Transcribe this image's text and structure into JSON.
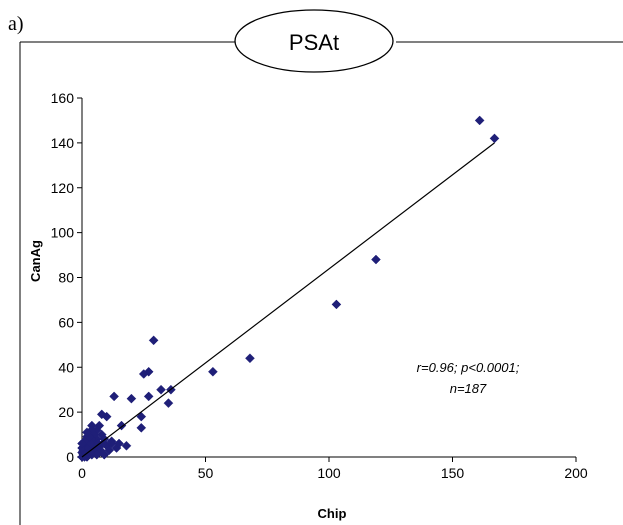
{
  "panel_label": "a)",
  "title": "PSAt",
  "annotation": {
    "line1": "r=0.96; p<0.0001;",
    "line2": "n=187"
  },
  "colors": {
    "marker": "#1f1f78",
    "axis": "#000000",
    "fit_line": "#000000"
  },
  "chart_data": {
    "type": "scatter",
    "title": "PSAt",
    "xlabel": "Chip",
    "ylabel": "CanAg",
    "xlim": [
      0,
      200
    ],
    "ylim": [
      0,
      160
    ],
    "x_ticks": [
      0,
      50,
      100,
      150,
      200
    ],
    "y_ticks": [
      0,
      20,
      40,
      60,
      80,
      100,
      120,
      140,
      160
    ],
    "grid": false,
    "marker": "diamond",
    "fit_line": {
      "x": [
        0,
        167
      ],
      "y": [
        0,
        140
      ]
    },
    "points": [
      [
        161,
        150
      ],
      [
        167,
        142
      ],
      [
        119,
        88
      ],
      [
        103,
        68
      ],
      [
        68,
        44
      ],
      [
        53,
        38
      ],
      [
        36,
        30
      ],
      [
        35,
        24
      ],
      [
        32,
        30
      ],
      [
        29,
        52
      ],
      [
        27,
        38
      ],
      [
        25,
        37
      ],
      [
        27,
        27
      ],
      [
        24,
        18
      ],
      [
        24,
        13
      ],
      [
        20,
        26
      ],
      [
        18,
        5
      ],
      [
        16,
        14
      ],
      [
        13,
        27
      ],
      [
        12,
        7
      ],
      [
        10,
        5
      ],
      [
        10,
        18
      ],
      [
        8,
        19
      ],
      [
        8,
        10
      ],
      [
        7,
        14
      ],
      [
        7,
        5
      ],
      [
        6,
        8
      ],
      [
        6,
        12
      ],
      [
        6,
        2
      ],
      [
        5,
        6
      ],
      [
        5,
        10
      ],
      [
        5,
        3
      ],
      [
        4,
        14
      ],
      [
        4,
        8
      ],
      [
        4,
        1
      ],
      [
        3,
        11
      ],
      [
        3,
        5
      ],
      [
        3,
        2
      ],
      [
        2,
        7
      ],
      [
        2,
        9
      ],
      [
        2,
        3
      ],
      [
        2,
        0
      ],
      [
        1,
        5
      ],
      [
        1,
        2
      ],
      [
        1,
        7
      ],
      [
        1,
        0
      ],
      [
        0.5,
        1
      ],
      [
        0.5,
        3
      ],
      [
        0,
        0
      ],
      [
        0,
        2
      ],
      [
        0,
        4
      ],
      [
        0,
        6
      ],
      [
        1.5,
        1.5
      ],
      [
        2.5,
        4
      ],
      [
        3.5,
        6
      ],
      [
        4.5,
        2
      ],
      [
        5.5,
        4
      ],
      [
        6.5,
        6
      ],
      [
        9,
        8
      ],
      [
        11,
        3
      ],
      [
        12,
        6
      ],
      [
        14,
        4
      ],
      [
        15,
        6
      ],
      [
        7.5,
        3
      ],
      [
        8.5,
        6
      ],
      [
        3,
        9
      ],
      [
        4,
        12
      ],
      [
        2,
        11
      ],
      [
        6,
        1
      ],
      [
        9,
        1
      ]
    ]
  }
}
